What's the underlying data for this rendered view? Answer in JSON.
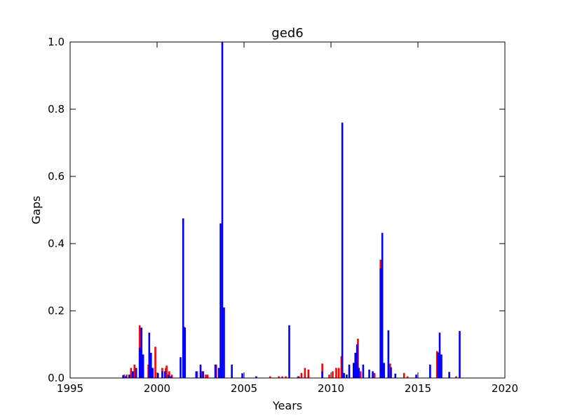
{
  "chart_data": {
    "type": "bar",
    "title": "ged6",
    "xlabel": "Years",
    "ylabel": "Gaps",
    "xlim": [
      1995,
      2020
    ],
    "ylim": [
      0,
      1.0
    ],
    "xticks": [
      1995,
      2000,
      2005,
      2010,
      2015,
      2020
    ],
    "xtick_labels": [
      "1995",
      "2000",
      "2005",
      "2010",
      "2015",
      "2020"
    ],
    "yticks": [
      0.0,
      0.2,
      0.4,
      0.6,
      0.8,
      1.0
    ],
    "ytick_labels": [
      "0.0",
      "0.2",
      "0.4",
      "0.6",
      "0.8",
      "1.0"
    ],
    "grid": false,
    "series": [
      {
        "color": "#ff0000",
        "x": [
          1998.1,
          1998.25,
          1998.5,
          1998.7,
          1999.0,
          1999.2,
          1999.5,
          1999.7,
          1999.9,
          2000.3,
          2000.5,
          2000.55,
          2000.7,
          2000.85,
          2001.55,
          2002.3,
          2002.6,
          2002.8,
          2002.9,
          2003.4,
          2003.7,
          2006.5,
          2007.0,
          2007.2,
          2007.4,
          2008.1,
          2008.3,
          2008.5,
          2008.7,
          2009.5,
          2009.9,
          2010.1,
          2010.3,
          2010.45,
          2010.6,
          2010.9,
          2011.3,
          2011.55,
          2011.7,
          2012.5,
          2012.85,
          2013.4,
          2014.2,
          2014.4,
          2016.1,
          2017.2
        ],
        "values": [
          0.01,
          0.01,
          0.03,
          0.04,
          0.157,
          0.03,
          0.04,
          0.02,
          0.093,
          0.03,
          0.03,
          0.037,
          0.02,
          0.01,
          0.153,
          0.02,
          0.02,
          0.01,
          0.01,
          0.04,
          0.04,
          0.005,
          0.005,
          0.005,
          0.005,
          0.005,
          0.015,
          0.03,
          0.025,
          0.043,
          0.01,
          0.02,
          0.03,
          0.03,
          0.065,
          0.01,
          0.03,
          0.117,
          0.02,
          0.015,
          0.352,
          0.043,
          0.015,
          0.005,
          0.08,
          0.005
        ]
      },
      {
        "color": "#0000ff",
        "x": [
          1998.05,
          1998.2,
          1998.4,
          1998.6,
          1998.8,
          1999.0,
          1999.1,
          1999.2,
          1999.55,
          1999.65,
          1999.75,
          2000.05,
          2000.3,
          2000.45,
          2000.65,
          2000.8,
          2001.35,
          2001.5,
          2001.6,
          2002.25,
          2002.5,
          2002.65,
          2003.35,
          2003.55,
          2003.65,
          2003.75,
          2003.85,
          2004.3,
          2004.9,
          2005.7,
          2007.6,
          2008.15,
          2009.5,
          2010.65,
          2010.75,
          2010.9,
          2011.05,
          2011.3,
          2011.4,
          2011.5,
          2011.6,
          2011.85,
          2012.2,
          2012.4,
          2012.85,
          2012.95,
          2013.05,
          2013.3,
          2013.45,
          2013.7,
          2014.9,
          2015.7,
          2016.15,
          2016.25,
          2016.35,
          2016.8,
          2017.4
        ],
        "values": [
          0.008,
          0.005,
          0.01,
          0.02,
          0.03,
          0.09,
          0.15,
          0.07,
          0.135,
          0.075,
          0.03,
          0.015,
          0.02,
          0.02,
          0.01,
          0.005,
          0.062,
          0.475,
          0.15,
          0.02,
          0.04,
          0.02,
          0.04,
          0.03,
          0.46,
          1.0,
          0.21,
          0.04,
          0.014,
          0.005,
          0.157,
          0.005,
          0.02,
          0.76,
          0.015,
          0.01,
          0.04,
          0.045,
          0.075,
          0.1,
          0.03,
          0.04,
          0.025,
          0.02,
          0.327,
          0.432,
          0.045,
          0.142,
          0.032,
          0.013,
          0.01,
          0.04,
          0.076,
          0.135,
          0.07,
          0.018,
          0.14
        ]
      }
    ]
  }
}
